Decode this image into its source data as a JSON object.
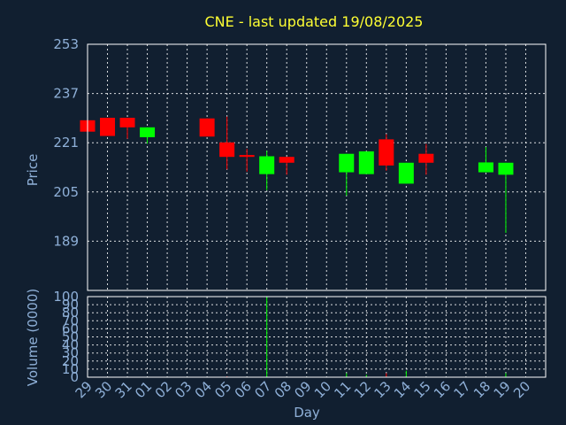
{
  "chart_data": {
    "type": "candlestick",
    "title": "CNE - last updated 19/08/2025",
    "xlabel": "Day",
    "price_panel": {
      "ylabel": "Price",
      "ylim": [
        173,
        253
      ],
      "yticks": [
        "253",
        "237",
        "221",
        "205",
        "189"
      ],
      "grid": true
    },
    "volume_panel": {
      "ylabel": "Volume (0000)",
      "ylim": [
        0,
        100
      ],
      "yticks": [
        "100",
        "90",
        "80",
        "70",
        "60",
        "50",
        "40",
        "30",
        "20",
        "10",
        "0"
      ],
      "grid": true
    },
    "x_ticks": [
      "29",
      "30",
      "31",
      "01",
      "02",
      "03",
      "04",
      "05",
      "06",
      "07",
      "08",
      "09",
      "10",
      "11",
      "12",
      "13",
      "14",
      "15",
      "16",
      "17",
      "18",
      "19",
      "20"
    ],
    "colors": {
      "up": "#00ff00",
      "down": "#ff0000",
      "title": "#ffff33",
      "axis_text": "#8fb0d8",
      "background": "#111f30"
    },
    "candles": [
      {
        "day": "29",
        "open": 228.3,
        "high": 228.3,
        "low": 224.6,
        "close": 224.6,
        "volume": 0
      },
      {
        "day": "30",
        "open": 229.1,
        "high": 229.1,
        "low": 223.2,
        "close": 223.2,
        "volume": 0
      },
      {
        "day": "31",
        "open": 229.1,
        "high": 229.1,
        "low": 222.3,
        "close": 226.0,
        "volume": 0
      },
      {
        "day": "01",
        "open": 222.8,
        "high": 226.0,
        "low": 220.7,
        "close": 226.0,
        "volume": 0
      },
      {
        "day": "04",
        "open": 228.9,
        "high": 228.9,
        "low": 223.0,
        "close": 223.0,
        "volume": 0
      },
      {
        "day": "05",
        "open": 221.1,
        "high": 229.5,
        "low": 212.3,
        "close": 216.4,
        "volume": 1
      },
      {
        "day": "06",
        "open": 217.0,
        "high": 219.0,
        "low": 211.6,
        "close": 216.4,
        "volume": 0
      },
      {
        "day": "07",
        "open": 210.8,
        "high": 218.4,
        "low": 205.6,
        "close": 216.6,
        "volume": 100
      },
      {
        "day": "08",
        "open": 216.4,
        "high": 216.4,
        "low": 210.6,
        "close": 214.5,
        "volume": 0
      },
      {
        "day": "11",
        "open": 211.4,
        "high": 217.4,
        "low": 203.8,
        "close": 217.4,
        "volume": 5
      },
      {
        "day": "12",
        "open": 210.8,
        "high": 218.2,
        "low": 210.8,
        "close": 218.2,
        "volume": 3
      },
      {
        "day": "13",
        "open": 222.1,
        "high": 223.8,
        "low": 211.9,
        "close": 213.6,
        "volume": 5
      },
      {
        "day": "14",
        "open": 207.7,
        "high": 214.5,
        "low": 207.7,
        "close": 214.5,
        "volume": 8
      },
      {
        "day": "15",
        "open": 217.4,
        "high": 220.6,
        "low": 210.6,
        "close": 214.5,
        "volume": 0
      },
      {
        "day": "18",
        "open": 211.4,
        "high": 219.6,
        "low": 211.4,
        "close": 214.6,
        "volume": 0
      },
      {
        "day": "19",
        "open": 210.6,
        "high": 214.5,
        "low": 191.7,
        "close": 214.5,
        "volume": 5
      }
    ]
  }
}
